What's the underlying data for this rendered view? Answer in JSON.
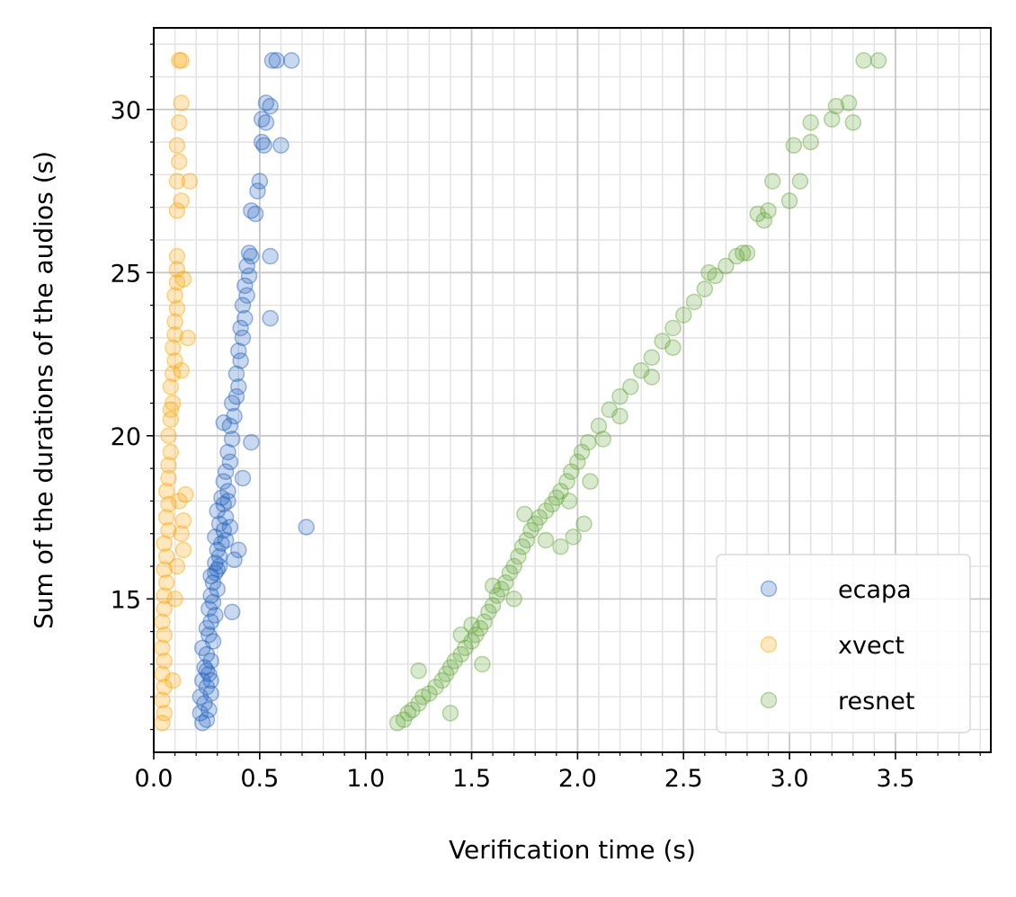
{
  "chart_data": {
    "type": "scatter",
    "xlabel": "Verification time (s)",
    "ylabel": "Sum of the durations of the audios (s)",
    "xlim": [
      0,
      3.95
    ],
    "ylim": [
      10.3,
      32.5
    ],
    "xticks": [
      {
        "value": 0.0,
        "label": "0.0"
      },
      {
        "value": 0.5,
        "label": "0.5"
      },
      {
        "value": 1.0,
        "label": "1.0"
      },
      {
        "value": 1.5,
        "label": "1.5"
      },
      {
        "value": 2.0,
        "label": "2.0"
      },
      {
        "value": 2.5,
        "label": "2.5"
      },
      {
        "value": 3.0,
        "label": "3.0"
      },
      {
        "value": 3.5,
        "label": "3.5"
      }
    ],
    "yticks": [
      {
        "value": 15,
        "label": "15"
      },
      {
        "value": 20,
        "label": "20"
      },
      {
        "value": 25,
        "label": "25"
      },
      {
        "value": 30,
        "label": "30"
      }
    ],
    "grid": true,
    "minor_grid": true,
    "legend_position": "bottom-right",
    "series": [
      {
        "name": "ecapa",
        "color": "#2463BE",
        "points": [
          [
            0.23,
            11.2
          ],
          [
            0.25,
            11.3
          ],
          [
            0.22,
            11.5
          ],
          [
            0.26,
            11.6
          ],
          [
            0.24,
            11.8
          ],
          [
            0.22,
            12.0
          ],
          [
            0.27,
            12.1
          ],
          [
            0.25,
            12.3
          ],
          [
            0.23,
            12.5
          ],
          [
            0.26,
            12.7
          ],
          [
            0.24,
            12.9
          ],
          [
            0.27,
            13.1
          ],
          [
            0.25,
            13.3
          ],
          [
            0.23,
            13.5
          ],
          [
            0.28,
            13.7
          ],
          [
            0.26,
            13.9
          ],
          [
            0.25,
            14.1
          ],
          [
            0.27,
            14.3
          ],
          [
            0.29,
            14.5
          ],
          [
            0.26,
            14.7
          ],
          [
            0.28,
            14.9
          ],
          [
            0.27,
            15.1
          ],
          [
            0.3,
            15.3
          ],
          [
            0.28,
            15.5
          ],
          [
            0.27,
            15.7
          ],
          [
            0.3,
            15.9
          ],
          [
            0.29,
            16.1
          ],
          [
            0.31,
            16.3
          ],
          [
            0.3,
            16.5
          ],
          [
            0.32,
            16.7
          ],
          [
            0.29,
            16.9
          ],
          [
            0.33,
            17.1
          ],
          [
            0.31,
            17.3
          ],
          [
            0.34,
            17.5
          ],
          [
            0.3,
            17.7
          ],
          [
            0.33,
            17.9
          ],
          [
            0.32,
            18.1
          ],
          [
            0.35,
            18.3
          ],
          [
            0.33,
            18.6
          ],
          [
            0.34,
            18.9
          ],
          [
            0.36,
            19.2
          ],
          [
            0.35,
            19.5
          ],
          [
            0.37,
            19.9
          ],
          [
            0.36,
            20.3
          ],
          [
            0.38,
            20.6
          ],
          [
            0.37,
            21.0
          ],
          [
            0.39,
            21.2
          ],
          [
            0.4,
            21.5
          ],
          [
            0.39,
            21.9
          ],
          [
            0.41,
            22.3
          ],
          [
            0.4,
            22.6
          ],
          [
            0.42,
            23.0
          ],
          [
            0.41,
            23.3
          ],
          [
            0.43,
            23.6
          ],
          [
            0.42,
            24.0
          ],
          [
            0.44,
            24.3
          ],
          [
            0.43,
            24.6
          ],
          [
            0.45,
            24.9
          ],
          [
            0.44,
            25.2
          ],
          [
            0.46,
            25.5
          ],
          [
            0.45,
            25.6
          ],
          [
            0.48,
            26.8
          ],
          [
            0.46,
            26.9
          ],
          [
            0.52,
            28.9
          ],
          [
            0.51,
            29.0
          ],
          [
            0.53,
            29.6
          ],
          [
            0.51,
            29.7
          ],
          [
            0.55,
            30.1
          ],
          [
            0.53,
            30.2
          ],
          [
            0.56,
            31.5
          ],
          [
            0.58,
            31.5
          ],
          [
            0.27,
            12.5
          ],
          [
            0.25,
            12.8
          ],
          [
            0.34,
            16.8
          ],
          [
            0.36,
            17.2
          ],
          [
            0.31,
            16.0
          ],
          [
            0.35,
            18.0
          ],
          [
            0.29,
            15.8
          ],
          [
            0.55,
            23.6
          ],
          [
            0.72,
            17.2
          ],
          [
            0.6,
            28.9
          ],
          [
            0.65,
            31.5
          ],
          [
            0.5,
            27.8
          ],
          [
            0.37,
            14.6
          ],
          [
            0.4,
            16.5
          ],
          [
            0.42,
            18.7
          ],
          [
            0.46,
            19.8
          ],
          [
            0.33,
            20.4
          ],
          [
            0.55,
            25.5
          ],
          [
            0.49,
            27.5
          ],
          [
            0.38,
            16.2
          ]
        ]
      },
      {
        "name": "xvect",
        "color": "#FFA500",
        "points": [
          [
            0.04,
            11.2
          ],
          [
            0.05,
            11.5
          ],
          [
            0.04,
            11.9
          ],
          [
            0.05,
            12.3
          ],
          [
            0.04,
            12.7
          ],
          [
            0.05,
            13.1
          ],
          [
            0.04,
            13.5
          ],
          [
            0.05,
            13.9
          ],
          [
            0.04,
            14.3
          ],
          [
            0.05,
            14.7
          ],
          [
            0.05,
            15.1
          ],
          [
            0.06,
            15.5
          ],
          [
            0.05,
            15.9
          ],
          [
            0.06,
            16.3
          ],
          [
            0.05,
            16.7
          ],
          [
            0.07,
            17.1
          ],
          [
            0.06,
            17.5
          ],
          [
            0.07,
            17.9
          ],
          [
            0.06,
            18.3
          ],
          [
            0.07,
            18.7
          ],
          [
            0.07,
            19.1
          ],
          [
            0.08,
            19.5
          ],
          [
            0.07,
            20.0
          ],
          [
            0.08,
            20.5
          ],
          [
            0.09,
            21.0
          ],
          [
            0.08,
            21.5
          ],
          [
            0.09,
            21.9
          ],
          [
            0.1,
            22.3
          ],
          [
            0.09,
            22.7
          ],
          [
            0.1,
            23.1
          ],
          [
            0.1,
            23.5
          ],
          [
            0.11,
            23.9
          ],
          [
            0.1,
            24.3
          ],
          [
            0.11,
            24.7
          ],
          [
            0.11,
            25.1
          ],
          [
            0.11,
            25.5
          ],
          [
            0.11,
            26.9
          ],
          [
            0.11,
            28.9
          ],
          [
            0.12,
            29.6
          ],
          [
            0.13,
            30.2
          ],
          [
            0.13,
            31.5
          ],
          [
            0.12,
            31.5
          ],
          [
            0.11,
            16.0
          ],
          [
            0.13,
            17.0
          ],
          [
            0.12,
            18.0
          ],
          [
            0.14,
            16.5
          ],
          [
            0.15,
            18.2
          ],
          [
            0.13,
            22.0
          ],
          [
            0.14,
            24.8
          ],
          [
            0.16,
            23.0
          ],
          [
            0.12,
            28.4
          ],
          [
            0.11,
            27.8
          ],
          [
            0.17,
            27.8
          ],
          [
            0.13,
            27.2
          ],
          [
            0.1,
            15.0
          ],
          [
            0.14,
            17.4
          ],
          [
            0.09,
            12.5
          ],
          [
            0.08,
            20.8
          ]
        ]
      },
      {
        "name": "resnet",
        "color": "#63A83A",
        "points": [
          [
            1.15,
            11.2
          ],
          [
            1.18,
            11.3
          ],
          [
            1.2,
            11.5
          ],
          [
            1.22,
            11.6
          ],
          [
            1.25,
            11.8
          ],
          [
            1.27,
            12.0
          ],
          [
            1.3,
            12.1
          ],
          [
            1.33,
            12.3
          ],
          [
            1.36,
            12.5
          ],
          [
            1.38,
            12.7
          ],
          [
            1.4,
            12.9
          ],
          [
            1.42,
            13.1
          ],
          [
            1.45,
            13.3
          ],
          [
            1.47,
            13.5
          ],
          [
            1.5,
            13.7
          ],
          [
            1.52,
            13.9
          ],
          [
            1.54,
            14.1
          ],
          [
            1.56,
            14.3
          ],
          [
            1.58,
            14.6
          ],
          [
            1.6,
            14.8
          ],
          [
            1.62,
            15.1
          ],
          [
            1.64,
            15.3
          ],
          [
            1.66,
            15.5
          ],
          [
            1.68,
            15.8
          ],
          [
            1.7,
            16.0
          ],
          [
            1.72,
            16.3
          ],
          [
            1.74,
            16.6
          ],
          [
            1.76,
            16.8
          ],
          [
            1.78,
            17.1
          ],
          [
            1.8,
            17.3
          ],
          [
            1.82,
            17.5
          ],
          [
            1.85,
            17.7
          ],
          [
            1.88,
            17.9
          ],
          [
            1.9,
            18.1
          ],
          [
            1.92,
            18.3
          ],
          [
            1.95,
            18.6
          ],
          [
            1.97,
            18.9
          ],
          [
            2.0,
            19.2
          ],
          [
            2.02,
            19.5
          ],
          [
            2.05,
            19.8
          ],
          [
            2.1,
            20.3
          ],
          [
            2.15,
            20.8
          ],
          [
            2.2,
            21.2
          ],
          [
            2.25,
            21.5
          ],
          [
            2.3,
            22.0
          ],
          [
            2.35,
            22.4
          ],
          [
            2.4,
            22.9
          ],
          [
            2.45,
            23.3
          ],
          [
            2.5,
            23.7
          ],
          [
            2.55,
            24.1
          ],
          [
            2.6,
            24.5
          ],
          [
            2.65,
            24.9
          ],
          [
            2.7,
            25.2
          ],
          [
            2.75,
            25.5
          ],
          [
            2.8,
            25.6
          ],
          [
            2.85,
            26.8
          ],
          [
            2.9,
            26.9
          ],
          [
            3.02,
            28.9
          ],
          [
            3.1,
            29.0
          ],
          [
            3.1,
            29.6
          ],
          [
            3.2,
            29.7
          ],
          [
            3.22,
            30.1
          ],
          [
            3.28,
            30.2
          ],
          [
            3.35,
            31.5
          ],
          [
            3.42,
            31.5
          ],
          [
            1.92,
            16.6
          ],
          [
            1.98,
            16.9
          ],
          [
            2.03,
            17.3
          ],
          [
            1.75,
            17.6
          ],
          [
            1.85,
            16.8
          ],
          [
            1.6,
            15.4
          ],
          [
            1.7,
            15.0
          ],
          [
            1.5,
            14.2
          ],
          [
            1.4,
            11.5
          ],
          [
            1.25,
            12.8
          ],
          [
            1.96,
            18.0
          ],
          [
            2.06,
            18.6
          ],
          [
            1.55,
            13.0
          ],
          [
            2.92,
            27.8
          ],
          [
            3.05,
            27.8
          ],
          [
            3.0,
            27.2
          ],
          [
            2.88,
            26.6
          ],
          [
            3.3,
            29.6
          ],
          [
            2.45,
            22.7
          ],
          [
            2.35,
            21.8
          ],
          [
            2.2,
            20.6
          ],
          [
            1.45,
            13.9
          ],
          [
            2.12,
            19.9
          ],
          [
            2.62,
            25.0
          ],
          [
            2.78,
            25.6
          ]
        ]
      }
    ]
  }
}
